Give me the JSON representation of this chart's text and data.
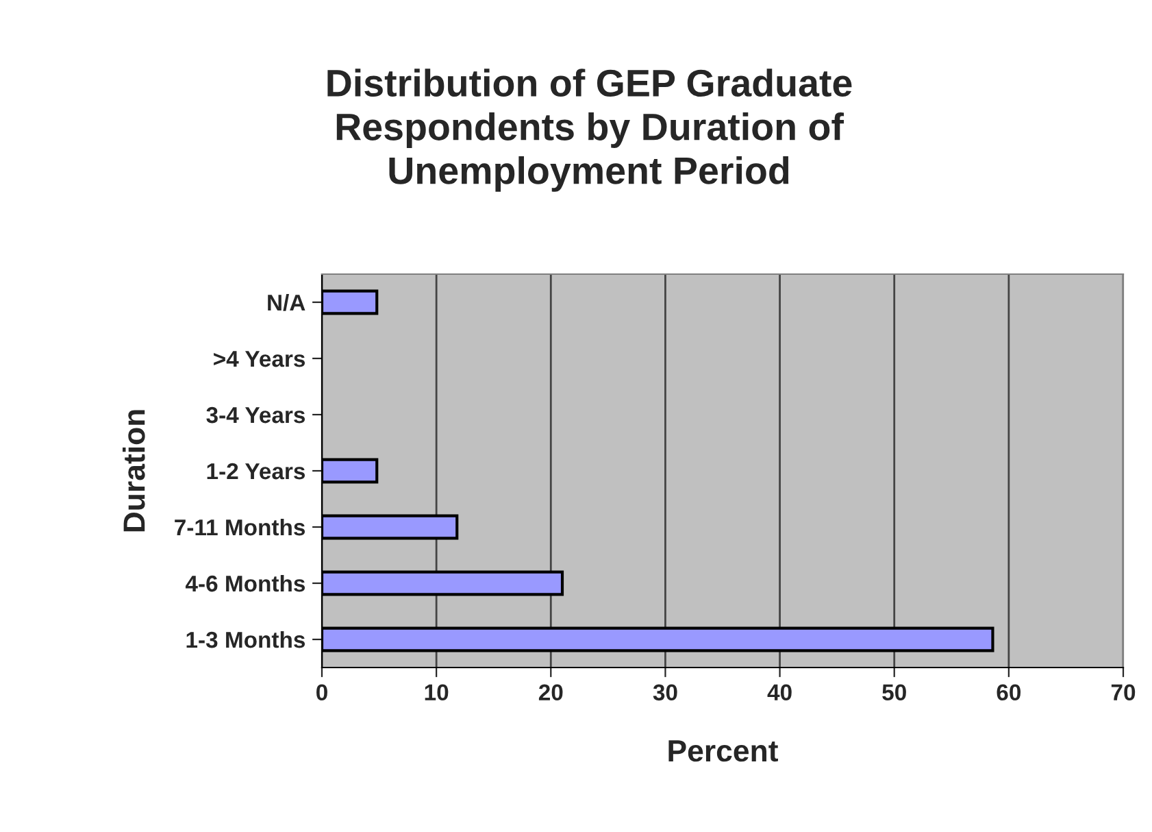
{
  "chart_data": {
    "type": "bar",
    "orientation": "horizontal",
    "title": "Distribution of GEP Graduate\nRespondents by Duration of\nUnemployment Period",
    "xlabel": "Percent",
    "ylabel": "Duration",
    "categories": [
      "N/A",
      ">4 Years",
      "3-4 Years",
      "1-2 Years",
      "7-11 Months",
      "4-6 Months",
      "1-3 Months"
    ],
    "values": [
      4.8,
      0,
      0,
      4.8,
      11.8,
      21.0,
      58.6
    ],
    "color": "#9999ff",
    "xlim": [
      0,
      70
    ],
    "xticks": [
      0,
      10,
      20,
      30,
      40,
      50,
      60,
      70
    ],
    "grid": "x"
  }
}
